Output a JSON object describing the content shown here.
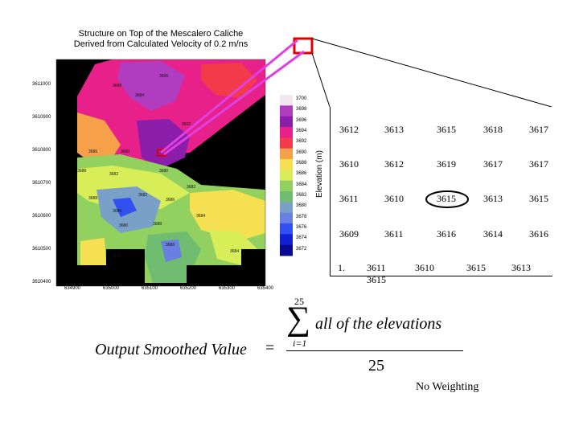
{
  "map": {
    "title_line1": "Structure on Top of the Mescalero Caliche",
    "title_line2": "Derived from Calculated Velocity of 0.2 m/ns",
    "y_ticks": [
      "3610400",
      "3610500",
      "3610600",
      "3610700",
      "3610800",
      "3610900",
      "3611000"
    ],
    "x_ticks": [
      "634900",
      "635000",
      "635100",
      "635200",
      "635300",
      "635400"
    ],
    "colorbar_ticks": [
      "3700",
      "3698",
      "3696",
      "3694",
      "3692",
      "3690",
      "3688",
      "3686",
      "3684",
      "3682",
      "3680",
      "3678",
      "3676",
      "3674",
      "3672"
    ],
    "colorbar_colors": [
      "#f2e6f2",
      "#b03cc0",
      "#8a1ea8",
      "#e8208a",
      "#f23a4a",
      "#f6a04a",
      "#f4e050",
      "#d8ee58",
      "#92d060",
      "#70bc70",
      "#7aa0c8",
      "#6a80e0",
      "#3050f0",
      "#1020d0",
      "#0a0a90"
    ],
    "elevation_label": "Elevation (m)",
    "contour_labels": [
      "3688",
      "3684",
      "3696",
      "3692",
      "3686",
      "3690",
      "3688",
      "3682",
      "3680",
      "3684",
      "3688",
      "3680",
      "3682",
      "3686",
      "3684",
      "3688",
      "3680",
      "3682",
      "3684",
      "3686",
      "3690"
    ]
  },
  "grid": {
    "rows": [
      [
        "3612",
        "3613",
        "3615",
        "3618",
        "3617"
      ],
      [
        "3610",
        "3612",
        "3619",
        "3617",
        "3617"
      ],
      [
        "3611",
        "3610",
        "3615",
        "3613",
        "3615"
      ],
      [
        "3609",
        "3611",
        "3616",
        "3614",
        "3616"
      ]
    ],
    "last_row": [
      "1.",
      "3611",
      "3610",
      "3615",
      "3613"
    ],
    "last_row_wrap": "3615",
    "highlighted_value": "3615"
  },
  "formula": {
    "left_side": "Output Smoothed Value",
    "equals": "=",
    "sum_upper": "25",
    "sum_lower": "i=1",
    "numerator": "all of the elevations",
    "denominator": "25"
  },
  "caption": "No Weighting",
  "colors": {
    "zoom_lines": "#e040e0",
    "zoom_box": "#e00000",
    "map_background": "#000000"
  }
}
